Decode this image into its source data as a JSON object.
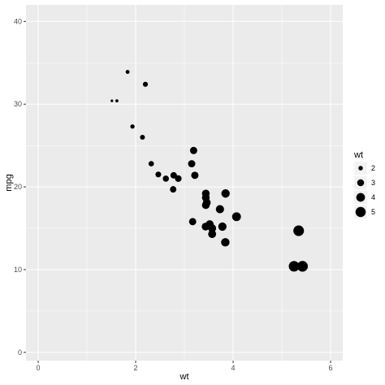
{
  "chart_data": {
    "type": "scatter",
    "xlabel": "wt",
    "ylabel": "mpg",
    "xlim": [
      -0.25,
      6.25
    ],
    "ylim": [
      -1,
      42
    ],
    "x_ticks": [
      0,
      2,
      4,
      6
    ],
    "y_ticks": [
      0,
      10,
      20,
      30,
      40
    ],
    "x_minor_ticks": [
      1,
      3,
      5
    ],
    "y_minor_ticks": [
      5,
      15,
      25,
      35
    ],
    "grid": true,
    "size_by": "wt",
    "legend": {
      "title": "wt",
      "position": "right",
      "entries": [
        {
          "label": "2",
          "value": 2
        },
        {
          "label": "3",
          "value": 3
        },
        {
          "label": "4",
          "value": 4
        },
        {
          "label": "5",
          "value": 5
        }
      ]
    },
    "points": [
      {
        "x": 2.62,
        "y": 21.0
      },
      {
        "x": 2.875,
        "y": 21.0
      },
      {
        "x": 2.32,
        "y": 22.8
      },
      {
        "x": 3.215,
        "y": 21.4
      },
      {
        "x": 3.44,
        "y": 18.7
      },
      {
        "x": 3.46,
        "y": 18.1
      },
      {
        "x": 3.57,
        "y": 14.3
      },
      {
        "x": 3.19,
        "y": 24.4
      },
      {
        "x": 3.15,
        "y": 22.8
      },
      {
        "x": 3.44,
        "y": 19.2
      },
      {
        "x": 3.44,
        "y": 17.8
      },
      {
        "x": 4.07,
        "y": 16.4
      },
      {
        "x": 3.73,
        "y": 17.3
      },
      {
        "x": 3.78,
        "y": 15.2
      },
      {
        "x": 5.25,
        "y": 10.4
      },
      {
        "x": 5.424,
        "y": 10.4
      },
      {
        "x": 5.345,
        "y": 14.7
      },
      {
        "x": 2.2,
        "y": 32.4
      },
      {
        "x": 1.615,
        "y": 30.4
      },
      {
        "x": 1.835,
        "y": 33.9
      },
      {
        "x": 2.465,
        "y": 21.5
      },
      {
        "x": 3.52,
        "y": 15.5
      },
      {
        "x": 3.435,
        "y": 15.2
      },
      {
        "x": 3.84,
        "y": 13.3
      },
      {
        "x": 3.845,
        "y": 19.2
      },
      {
        "x": 1.935,
        "y": 27.3
      },
      {
        "x": 2.14,
        "y": 26.0
      },
      {
        "x": 1.513,
        "y": 30.4
      },
      {
        "x": 3.17,
        "y": 15.8
      },
      {
        "x": 2.77,
        "y": 19.7
      },
      {
        "x": 3.57,
        "y": 15.0
      },
      {
        "x": 2.78,
        "y": 21.4
      }
    ],
    "point_color": "#000000",
    "panel_background": "#ebebeb",
    "grid_color": "#ffffff"
  }
}
